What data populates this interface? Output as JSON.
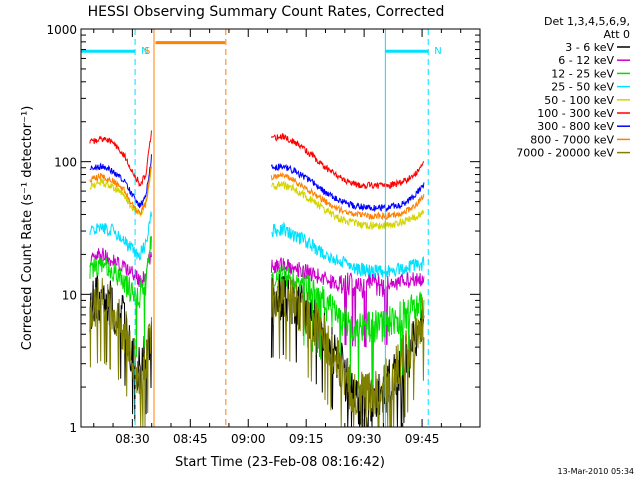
{
  "chart_data": {
    "type": "line",
    "title": "HESSI Observing Summary Count Rates, Corrected",
    "xlabel": "Start Time (23-Feb-08 08:16:42)",
    "ylabel": "Corrected Count Rate (s⁻¹ detector⁻¹)",
    "yscale": "log",
    "ylim": [
      1,
      1000
    ],
    "xlim_minutes": [
      496.7,
      600
    ],
    "x_ticks": [
      {
        "label": "08:30",
        "t": 510
      },
      {
        "label": "08:45",
        "t": 525
      },
      {
        "label": "09:00",
        "t": 540
      },
      {
        "label": "09:15",
        "t": 555
      },
      {
        "label": "09:30",
        "t": 570
      },
      {
        "label": "09:45",
        "t": 585
      }
    ],
    "y_ticks": [
      {
        "label": "1",
        "v": 1
      },
      {
        "label": "10",
        "v": 10
      },
      {
        "label": "100",
        "v": 100
      },
      {
        "label": "1000",
        "v": 1000
      }
    ],
    "legend": {
      "placement": "right",
      "header1": "Det 1,3,4,5,6,9,",
      "header2": "Att 0"
    },
    "series": [
      {
        "name": "3 - 6 keV",
        "color": "#000000",
        "level": 10,
        "noise": 0.12,
        "before": [
          [
            499,
            8
          ],
          [
            502,
            9.5
          ],
          [
            505,
            8
          ],
          [
            508,
            6
          ],
          [
            510.5,
            3.2
          ],
          [
            512,
            2.6
          ],
          [
            513.5,
            3.5
          ],
          [
            515,
            6
          ]
        ],
        "after": [
          [
            546,
            9.5
          ],
          [
            549,
            10
          ],
          [
            552,
            9
          ],
          [
            556,
            7
          ],
          [
            560,
            4.8
          ],
          [
            564,
            3
          ],
          [
            567,
            1.7
          ],
          [
            569,
            1.5
          ],
          [
            572,
            1.6
          ],
          [
            576,
            2
          ],
          [
            579,
            2.6
          ],
          [
            582,
            3.8
          ],
          [
            584,
            5.5
          ],
          [
            585.5,
            7
          ]
        ]
      },
      {
        "name": "6 - 12 keV",
        "color": "#cc00cc",
        "level": 12,
        "noise": 0.06,
        "before": [
          [
            499,
            18
          ],
          [
            502,
            20
          ],
          [
            505,
            18
          ],
          [
            508,
            16
          ],
          [
            510.5,
            14
          ],
          [
            512,
            12.5
          ],
          [
            513.5,
            14
          ],
          [
            515,
            22
          ]
        ],
        "after": [
          [
            546,
            16
          ],
          [
            549,
            17
          ],
          [
            552,
            16
          ],
          [
            556,
            14.5
          ],
          [
            560,
            13
          ],
          [
            564,
            12
          ],
          [
            568,
            11.5
          ],
          [
            572,
            11.5
          ],
          [
            576,
            12
          ],
          [
            580,
            12.5
          ],
          [
            583,
            13
          ],
          [
            585.5,
            13
          ]
        ]
      },
      {
        "name": "12 - 25 keV",
        "color": "#00e000",
        "level": 14,
        "noise": 0.08,
        "before": [
          [
            499,
            15
          ],
          [
            502,
            16.5
          ],
          [
            505,
            15
          ],
          [
            508,
            12
          ],
          [
            510.5,
            9.5
          ],
          [
            512,
            9.8
          ],
          [
            513.5,
            12
          ],
          [
            515,
            28
          ]
        ],
        "after": [
          [
            546,
            13
          ],
          [
            549,
            14
          ],
          [
            552,
            13
          ],
          [
            556,
            11
          ],
          [
            560,
            8.5
          ],
          [
            564,
            6.5
          ],
          [
            568,
            5.5
          ],
          [
            572,
            5.6
          ],
          [
            576,
            6
          ],
          [
            580,
            7
          ],
          [
            583,
            8
          ],
          [
            585.5,
            8.3
          ]
        ]
      },
      {
        "name": "25 - 50 keV",
        "color": "#00e0ff",
        "level": 16,
        "noise": 0.05,
        "before": [
          [
            499,
            30
          ],
          [
            502,
            32
          ],
          [
            505,
            30
          ],
          [
            508,
            25
          ],
          [
            510.5,
            21
          ],
          [
            512,
            20
          ],
          [
            513.5,
            24
          ],
          [
            515,
            40
          ]
        ],
        "after": [
          [
            546,
            30
          ],
          [
            549,
            31
          ],
          [
            552,
            28
          ],
          [
            556,
            24
          ],
          [
            560,
            20
          ],
          [
            564,
            17.5
          ],
          [
            568,
            15.5
          ],
          [
            572,
            15
          ],
          [
            576,
            15
          ],
          [
            580,
            15.5
          ],
          [
            583,
            16.5
          ],
          [
            585.5,
            17
          ]
        ]
      },
      {
        "name": "50 - 100 keV",
        "color": "#d4d400",
        "level": 18,
        "noise": 0.03,
        "before": [
          [
            499,
            65
          ],
          [
            502,
            70
          ],
          [
            505,
            65
          ],
          [
            508,
            55
          ],
          [
            510.5,
            43
          ],
          [
            512,
            40
          ],
          [
            513.5,
            48
          ],
          [
            515,
            90
          ]
        ],
        "after": [
          [
            546,
            65
          ],
          [
            549,
            67
          ],
          [
            552,
            62
          ],
          [
            556,
            52
          ],
          [
            560,
            43
          ],
          [
            564,
            37
          ],
          [
            568,
            34
          ],
          [
            572,
            33
          ],
          [
            576,
            33
          ],
          [
            580,
            35
          ],
          [
            583,
            38
          ],
          [
            585.5,
            42
          ]
        ]
      },
      {
        "name": "100 - 300 keV",
        "color": "#ff0000",
        "level": 20,
        "noise": 0.025,
        "before": [
          [
            499,
            140
          ],
          [
            502,
            150
          ],
          [
            505,
            140
          ],
          [
            508,
            110
          ],
          [
            510.5,
            80
          ],
          [
            512,
            67
          ],
          [
            513.5,
            80
          ],
          [
            515,
            170
          ]
        ],
        "after": [
          [
            546,
            150
          ],
          [
            549,
            155
          ],
          [
            552,
            140
          ],
          [
            556,
            115
          ],
          [
            560,
            90
          ],
          [
            564,
            75
          ],
          [
            568,
            67
          ],
          [
            572,
            66
          ],
          [
            576,
            66
          ],
          [
            580,
            70
          ],
          [
            583,
            80
          ],
          [
            585.5,
            98
          ]
        ]
      },
      {
        "name": "300 - 800 keV",
        "color": "#0000ff",
        "level": 22,
        "noise": 0.025,
        "before": [
          [
            499,
            88
          ],
          [
            502,
            92
          ],
          [
            505,
            85
          ],
          [
            508,
            70
          ],
          [
            510.5,
            53
          ],
          [
            512,
            46
          ],
          [
            513.5,
            55
          ],
          [
            515,
            110
          ]
        ],
        "after": [
          [
            546,
            90
          ],
          [
            549,
            92
          ],
          [
            552,
            85
          ],
          [
            556,
            72
          ],
          [
            560,
            58
          ],
          [
            564,
            50
          ],
          [
            568,
            46
          ],
          [
            572,
            45
          ],
          [
            576,
            45
          ],
          [
            580,
            48
          ],
          [
            583,
            55
          ],
          [
            585.5,
            68
          ]
        ]
      },
      {
        "name": "800 - 7000 keV",
        "color": "#ff8000",
        "level": 24,
        "noise": 0.025,
        "before": [
          [
            499,
            74
          ],
          [
            502,
            78
          ],
          [
            505,
            72
          ],
          [
            508,
            60
          ],
          [
            510.5,
            45
          ],
          [
            512,
            40
          ],
          [
            513.5,
            48
          ],
          [
            515,
            95
          ]
        ],
        "after": [
          [
            546,
            76
          ],
          [
            549,
            78
          ],
          [
            552,
            72
          ],
          [
            556,
            60
          ],
          [
            560,
            50
          ],
          [
            564,
            43
          ],
          [
            568,
            40
          ],
          [
            572,
            39
          ],
          [
            576,
            39
          ],
          [
            580,
            41
          ],
          [
            583,
            46
          ],
          [
            585.5,
            55
          ]
        ]
      },
      {
        "name": "7000 - 20000 keV",
        "color": "#808000",
        "level": 26,
        "noise": 0.12,
        "before": [
          [
            499,
            8
          ],
          [
            502,
            9
          ],
          [
            505,
            7.5
          ],
          [
            508,
            5.5
          ],
          [
            510.5,
            3
          ],
          [
            512,
            2.2
          ],
          [
            513.5,
            3
          ],
          [
            515,
            5.5
          ]
        ],
        "after": [
          [
            546,
            9
          ],
          [
            549,
            9.5
          ],
          [
            552,
            8.5
          ],
          [
            556,
            6.5
          ],
          [
            560,
            4.5
          ],
          [
            564,
            2.8
          ],
          [
            567,
            1.8
          ],
          [
            569,
            1.7
          ],
          [
            572,
            1.8
          ],
          [
            576,
            2.2
          ],
          [
            579,
            2.8
          ],
          [
            582,
            4
          ],
          [
            584,
            5.5
          ],
          [
            585.5,
            6.5
          ]
        ]
      }
    ],
    "data_gap": [
      515.6,
      545.8
    ],
    "markers": [
      {
        "label": "N",
        "color": "#00e0ff",
        "t": 510.7,
        "style": "dashed",
        "bar_from": 496.7,
        "bar_to": 510.7,
        "bar_value": 680
      },
      {
        "label": "N",
        "color": "#00e0ff",
        "t": 586.6,
        "style": "dashed",
        "bar_from": 575.5,
        "bar_to": 586.6,
        "bar_value": 680
      },
      {
        "label": "",
        "color": "#00e0ff",
        "t": 575.5,
        "style": "solid"
      },
      {
        "label": "S",
        "color": "#ff8000",
        "t": 515.6,
        "style": "solid",
        "bar_from": 516,
        "bar_to": 534,
        "bar_value": 790
      },
      {
        "label": "",
        "color": "#ff8000",
        "t": 534.2,
        "style": "dashed"
      }
    ],
    "gridlines": false
  },
  "footer": {
    "timestamp": "13-Mar-2010 05:34"
  }
}
